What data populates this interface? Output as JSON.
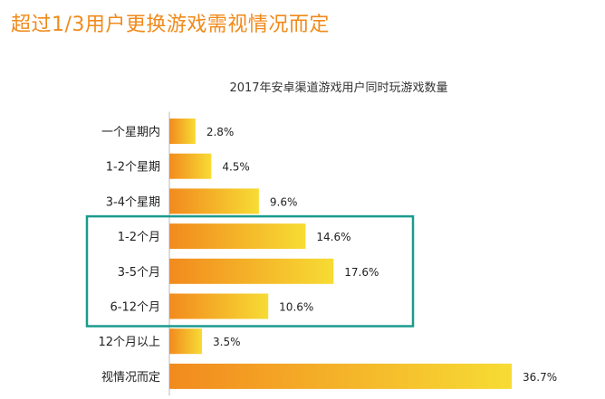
{
  "headline": "超过1/3用户更换游戏需视情况而定",
  "chart_data": {
    "type": "bar",
    "orientation": "horizontal",
    "title": "2017年安卓渠道游戏用户同时玩游戏数量",
    "categories": [
      "一个星期内",
      "1-2个星期",
      "3-4个星期",
      "1-2个月",
      "3-5个月",
      "6-12个月",
      "12个月以上",
      "视情况而定"
    ],
    "values": [
      2.8,
      4.5,
      9.6,
      14.6,
      17.6,
      10.6,
      3.5,
      36.7
    ],
    "value_labels": [
      "2.8%",
      "4.5%",
      "9.6%",
      "14.6%",
      "17.6%",
      "10.6%",
      "3.5%",
      "36.7%"
    ],
    "xlim": [
      0,
      40
    ],
    "highlighted_categories": [
      "1-2个月",
      "3-5个月",
      "6-12个月"
    ],
    "colors": {
      "headline": "#f08a1a",
      "bar_start": "#f28a1e",
      "bar_end": "#f7dc34",
      "highlight_box": "#1a9b8e",
      "axis": "#bbbbbb"
    }
  }
}
